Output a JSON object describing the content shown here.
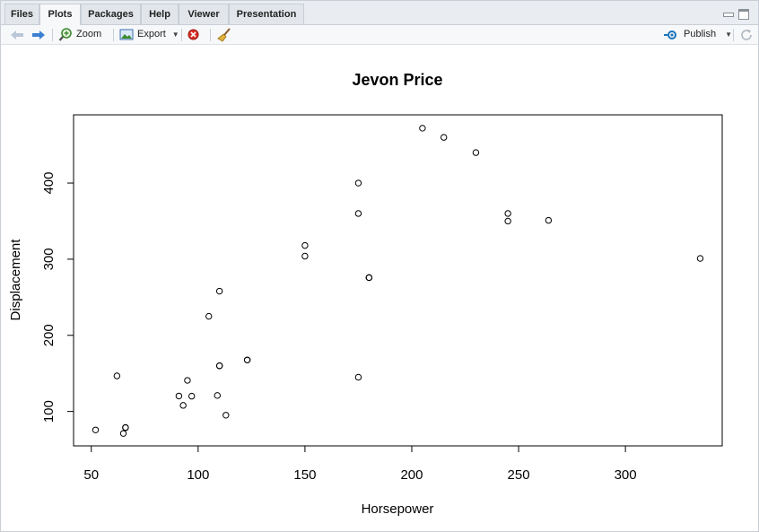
{
  "tabs": [
    {
      "label": "Files",
      "active": false
    },
    {
      "label": "Plots",
      "active": true
    },
    {
      "label": "Packages",
      "active": false
    },
    {
      "label": "Help",
      "active": false
    },
    {
      "label": "Viewer",
      "active": false
    },
    {
      "label": "Presentation",
      "active": false
    }
  ],
  "toolbar": {
    "zoom_label": "Zoom",
    "export_label": "Export",
    "publish_label": "Publish"
  },
  "colors": {
    "accent": "#1a73b8",
    "delete_red": "#d93025"
  },
  "chart_data": {
    "type": "scatter",
    "title": "Jevon Price",
    "xlabel": "Horsepower",
    "ylabel": "Displacement",
    "xlim": [
      41.7,
      345.3
    ],
    "ylim": [
      54.8,
      489.6
    ],
    "x_ticks": [
      50,
      100,
      150,
      200,
      250,
      300
    ],
    "y_ticks": [
      100,
      200,
      300,
      400
    ],
    "legend": "none",
    "grid": false,
    "points": [
      {
        "x": 110,
        "y": 160
      },
      {
        "x": 110,
        "y": 160
      },
      {
        "x": 93,
        "y": 108
      },
      {
        "x": 110,
        "y": 258
      },
      {
        "x": 175,
        "y": 360
      },
      {
        "x": 105,
        "y": 225
      },
      {
        "x": 245,
        "y": 360
      },
      {
        "x": 62,
        "y": 146.7
      },
      {
        "x": 95,
        "y": 140.8
      },
      {
        "x": 123,
        "y": 167.6
      },
      {
        "x": 123,
        "y": 167.6
      },
      {
        "x": 180,
        "y": 275.8
      },
      {
        "x": 180,
        "y": 275.8
      },
      {
        "x": 180,
        "y": 275.8
      },
      {
        "x": 205,
        "y": 472
      },
      {
        "x": 215,
        "y": 460
      },
      {
        "x": 230,
        "y": 440
      },
      {
        "x": 66,
        "y": 78.7
      },
      {
        "x": 52,
        "y": 75.7
      },
      {
        "x": 65,
        "y": 71.1
      },
      {
        "x": 97,
        "y": 120.1
      },
      {
        "x": 150,
        "y": 318
      },
      {
        "x": 150,
        "y": 304
      },
      {
        "x": 245,
        "y": 350
      },
      {
        "x": 175,
        "y": 400
      },
      {
        "x": 66,
        "y": 79
      },
      {
        "x": 91,
        "y": 120.3
      },
      {
        "x": 113,
        "y": 95.1
      },
      {
        "x": 264,
        "y": 351
      },
      {
        "x": 175,
        "y": 145
      },
      {
        "x": 335,
        "y": 301
      },
      {
        "x": 109,
        "y": 121
      }
    ]
  }
}
